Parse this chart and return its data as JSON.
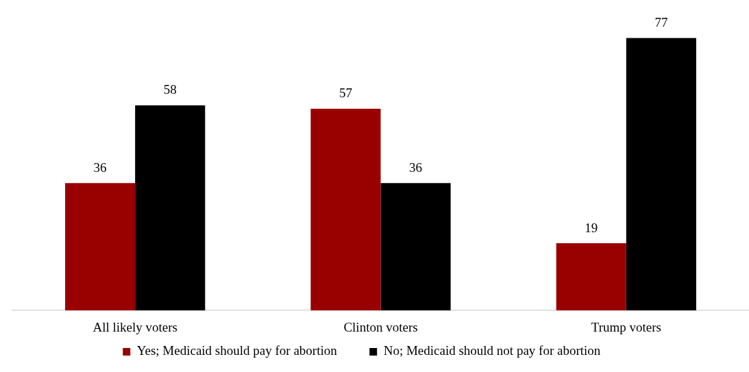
{
  "chart_data": {
    "type": "bar",
    "categories": [
      "All likely voters",
      "Clinton voters",
      "Trump voters"
    ],
    "series": [
      {
        "name": "Yes; Medicaid should pay for abortion",
        "color": "#990000",
        "values": [
          36,
          57,
          19
        ]
      },
      {
        "name": "No; Medicaid should not pay for abortion",
        "color": "#000000",
        "values": [
          58,
          36,
          77
        ]
      }
    ],
    "tick_labels": "x",
    "data_labels": true,
    "legend": "bottom",
    "grid": false
  }
}
